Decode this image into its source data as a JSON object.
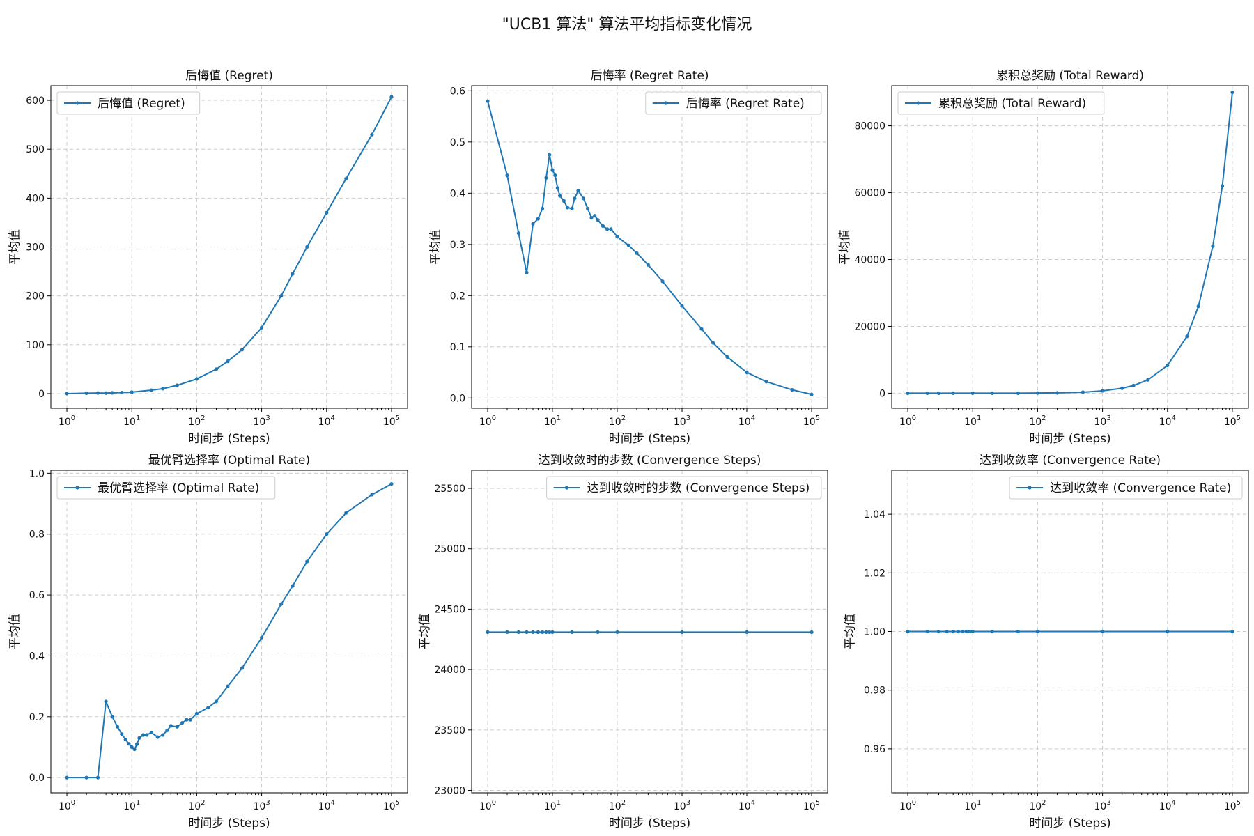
{
  "figure": {
    "title": "\"UCB1 算法\" 算法平均指标变化情况",
    "series_color": "#1f77b4"
  },
  "chart_data": [
    {
      "type": "line",
      "title": "后悔值 (Regret)",
      "xlabel": "时间步 (Steps)",
      "ylabel": "平均值",
      "xscale": "log",
      "xlim": [
        1,
        100000
      ],
      "xticks": [
        1,
        10,
        100,
        1000,
        10000,
        100000
      ],
      "xtick_labels": [
        "10^0",
        "10^1",
        "10^2",
        "10^3",
        "10^4",
        "10^5"
      ],
      "ylim": [
        -30,
        630
      ],
      "yticks": [
        0,
        100,
        200,
        300,
        400,
        500,
        600
      ],
      "ytick_labels": [
        "0",
        "100",
        "200",
        "300",
        "400",
        "500",
        "600"
      ],
      "legend": "top-left",
      "grid": true,
      "series": [
        {
          "name": "后悔值 (Regret)",
          "x": [
            1,
            2,
            3,
            4,
            5,
            7,
            10,
            20,
            30,
            50,
            100,
            200,
            300,
            500,
            1000,
            2000,
            3000,
            5000,
            10000,
            20000,
            50000,
            100000
          ],
          "y": [
            0,
            0.8,
            1.2,
            1.0,
            1.5,
            2,
            3,
            7,
            10,
            17,
            30,
            50,
            66,
            90,
            135,
            200,
            245,
            300,
            370,
            440,
            530,
            607
          ]
        }
      ]
    },
    {
      "type": "line",
      "title": "后悔率 (Regret Rate)",
      "xlabel": "时间步 (Steps)",
      "ylabel": "平均值",
      "xscale": "log",
      "xlim": [
        1,
        100000
      ],
      "xticks": [
        1,
        10,
        100,
        1000,
        10000,
        100000
      ],
      "xtick_labels": [
        "10^0",
        "10^1",
        "10^2",
        "10^3",
        "10^4",
        "10^5"
      ],
      "ylim": [
        -0.02,
        0.61
      ],
      "yticks": [
        0,
        0.1,
        0.2,
        0.3,
        0.4,
        0.5,
        0.6
      ],
      "ytick_labels": [
        "0.0",
        "0.1",
        "0.2",
        "0.3",
        "0.4",
        "0.5",
        "0.6"
      ],
      "legend": "top-right",
      "grid": true,
      "series": [
        {
          "name": "后悔率 (Regret Rate)",
          "x": [
            1,
            2,
            3,
            4,
            5,
            6,
            7,
            8,
            9,
            10,
            11,
            12,
            13,
            15,
            17,
            20,
            22,
            25,
            30,
            35,
            40,
            45,
            50,
            60,
            70,
            80,
            100,
            150,
            200,
            300,
            500,
            1000,
            2000,
            3000,
            5000,
            10000,
            20000,
            50000,
            100000
          ],
          "y": [
            0.58,
            0.435,
            0.322,
            0.245,
            0.34,
            0.35,
            0.37,
            0.43,
            0.475,
            0.445,
            0.435,
            0.41,
            0.395,
            0.385,
            0.372,
            0.37,
            0.39,
            0.405,
            0.39,
            0.37,
            0.352,
            0.356,
            0.348,
            0.336,
            0.33,
            0.33,
            0.315,
            0.298,
            0.283,
            0.26,
            0.228,
            0.18,
            0.135,
            0.108,
            0.08,
            0.05,
            0.032,
            0.016,
            0.007
          ]
        }
      ]
    },
    {
      "type": "line",
      "title": "累积总奖励 (Total Reward)",
      "xlabel": "时间步 (Steps)",
      "ylabel": "平均值",
      "xscale": "log",
      "xlim": [
        1,
        100000
      ],
      "xticks": [
        1,
        10,
        100,
        1000,
        10000,
        100000
      ],
      "xtick_labels": [
        "10^0",
        "10^1",
        "10^2",
        "10^3",
        "10^4",
        "10^5"
      ],
      "ylim": [
        -4500,
        92000
      ],
      "yticks": [
        0,
        20000,
        40000,
        60000,
        80000
      ],
      "ytick_labels": [
        "0",
        "20000",
        "40000",
        "60000",
        "80000"
      ],
      "legend": "top-left",
      "grid": true,
      "series": [
        {
          "name": "累积总奖励 (Total Reward)",
          "x": [
            1,
            2,
            3,
            5,
            10,
            20,
            50,
            100,
            200,
            500,
            1000,
            2000,
            3000,
            5000,
            10000,
            20000,
            30000,
            50000,
            70000,
            100000
          ],
          "y": [
            0,
            0,
            0,
            0,
            0,
            0,
            0,
            50,
            100,
            300,
            700,
            1500,
            2300,
            4000,
            8300,
            17000,
            26000,
            44000,
            62000,
            90000
          ]
        }
      ]
    },
    {
      "type": "line",
      "title": "最优臂选择率 (Optimal Rate)",
      "xlabel": "时间步 (Steps)",
      "ylabel": "平均值",
      "xscale": "log",
      "xlim": [
        1,
        100000
      ],
      "xticks": [
        1,
        10,
        100,
        1000,
        10000,
        100000
      ],
      "xtick_labels": [
        "10^0",
        "10^1",
        "10^2",
        "10^3",
        "10^4",
        "10^5"
      ],
      "ylim": [
        -0.05,
        1.01
      ],
      "yticks": [
        0,
        0.2,
        0.4,
        0.6,
        0.8,
        1.0
      ],
      "ytick_labels": [
        "0.0",
        "0.2",
        "0.4",
        "0.6",
        "0.8",
        "1.0"
      ],
      "legend": "top-left",
      "grid": true,
      "series": [
        {
          "name": "最优臂选择率 (Optimal Rate)",
          "x": [
            1,
            2,
            3,
            4,
            5,
            6,
            7,
            8,
            9,
            10,
            11,
            12,
            13,
            15,
            17,
            20,
            25,
            30,
            35,
            40,
            50,
            60,
            70,
            80,
            100,
            150,
            200,
            300,
            500,
            1000,
            2000,
            3000,
            5000,
            10000,
            20000,
            50000,
            100000
          ],
          "y": [
            0,
            0,
            0,
            0.25,
            0.2,
            0.167,
            0.143,
            0.125,
            0.111,
            0.1,
            0.093,
            0.11,
            0.13,
            0.14,
            0.14,
            0.148,
            0.133,
            0.14,
            0.155,
            0.17,
            0.167,
            0.18,
            0.19,
            0.19,
            0.21,
            0.23,
            0.25,
            0.3,
            0.36,
            0.46,
            0.57,
            0.63,
            0.71,
            0.8,
            0.87,
            0.93,
            0.965
          ]
        }
      ]
    },
    {
      "type": "line",
      "title": "达到收敛时的步数 (Convergence Steps)",
      "xlabel": "时间步 (Steps)",
      "ylabel": "平均值",
      "xscale": "log",
      "xlim": [
        1,
        100000
      ],
      "xticks": [
        1,
        10,
        100,
        1000,
        10000,
        100000
      ],
      "xtick_labels": [
        "10^0",
        "10^1",
        "10^2",
        "10^3",
        "10^4",
        "10^5"
      ],
      "ylim": [
        22980,
        25650
      ],
      "yticks": [
        23000,
        23500,
        24000,
        24500,
        25000,
        25500
      ],
      "ytick_labels": [
        "23000",
        "23500",
        "24000",
        "24500",
        "25000",
        "25500"
      ],
      "legend": "top-right",
      "grid": true,
      "series": [
        {
          "name": "达到收敛时的步数 (Convergence Steps)",
          "x": [
            1,
            2,
            3,
            4,
            5,
            6,
            7,
            8,
            9,
            10,
            20,
            50,
            100,
            1000,
            10000,
            100000
          ],
          "y": [
            24310,
            24310,
            24310,
            24310,
            24310,
            24310,
            24310,
            24310,
            24310,
            24310,
            24310,
            24310,
            24310,
            24310,
            24310,
            24310
          ]
        }
      ]
    },
    {
      "type": "line",
      "title": "达到收敛率 (Convergence Rate)",
      "xlabel": "时间步 (Steps)",
      "ylabel": "平均值",
      "xscale": "log",
      "xlim": [
        1,
        100000
      ],
      "xticks": [
        1,
        10,
        100,
        1000,
        10000,
        100000
      ],
      "xtick_labels": [
        "10^0",
        "10^1",
        "10^2",
        "10^3",
        "10^4",
        "10^5"
      ],
      "ylim": [
        0.945,
        1.055
      ],
      "yticks": [
        0.96,
        0.98,
        1.0,
        1.02,
        1.04
      ],
      "ytick_labels": [
        "0.96",
        "0.98",
        "1.00",
        "1.02",
        "1.04"
      ],
      "legend": "top-right",
      "grid": true,
      "series": [
        {
          "name": "达到收敛率 (Convergence Rate)",
          "x": [
            1,
            2,
            3,
            4,
            5,
            6,
            7,
            8,
            9,
            10,
            20,
            50,
            100,
            1000,
            10000,
            100000
          ],
          "y": [
            1,
            1,
            1,
            1,
            1,
            1,
            1,
            1,
            1,
            1,
            1,
            1,
            1,
            1,
            1,
            1
          ]
        }
      ]
    }
  ]
}
